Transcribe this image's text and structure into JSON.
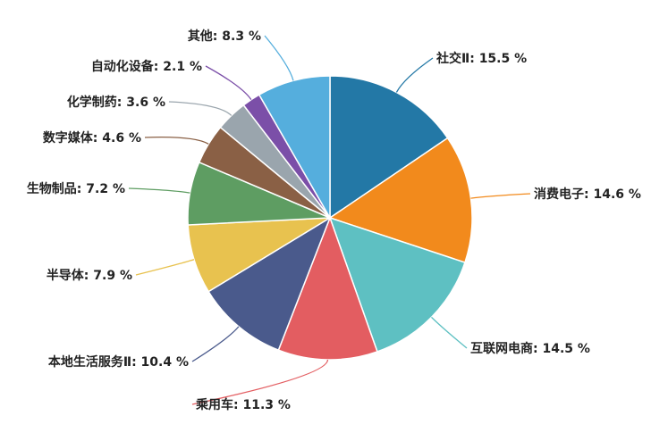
{
  "chart_data": {
    "type": "pie",
    "title": "",
    "slices": [
      {
        "name": "社交Ⅱ",
        "value": 15.5,
        "label": "社交Ⅱ: 15.5 %",
        "color": "#2378a6"
      },
      {
        "name": "消费电子",
        "value": 14.6,
        "label": "消费电子: 14.6 %",
        "color": "#f28a1c"
      },
      {
        "name": "互联网电商",
        "value": 14.5,
        "label": "互联网电商: 14.5 %",
        "color": "#5ec0c2"
      },
      {
        "name": "乘用车",
        "value": 11.3,
        "label": "乘用车: 11.3 %",
        "color": "#e35d61"
      },
      {
        "name": "本地生活服务Ⅱ",
        "value": 10.4,
        "label": "本地生活服务Ⅱ: 10.4 %",
        "color": "#4a5a8c"
      },
      {
        "name": "半导体",
        "value": 7.9,
        "label": "半导体: 7.9 %",
        "color": "#e8c24f"
      },
      {
        "name": "生物制品",
        "value": 7.2,
        "label": "生物制品: 7.2 %",
        "color": "#5e9d62"
      },
      {
        "name": "数字媒体",
        "value": 4.6,
        "label": "数字媒体: 4.6 %",
        "color": "#8a6045"
      },
      {
        "name": "化学制药",
        "value": 3.6,
        "label": "化学制药: 3.6 %",
        "color": "#9aa5ad"
      },
      {
        "name": "自动化设备",
        "value": 2.1,
        "label": "自动化设备: 2.1 %",
        "color": "#7b4fa8"
      },
      {
        "name": "其他",
        "value": 8.3,
        "label": "其他: 8.3 %",
        "color": "#55aedd"
      }
    ]
  }
}
